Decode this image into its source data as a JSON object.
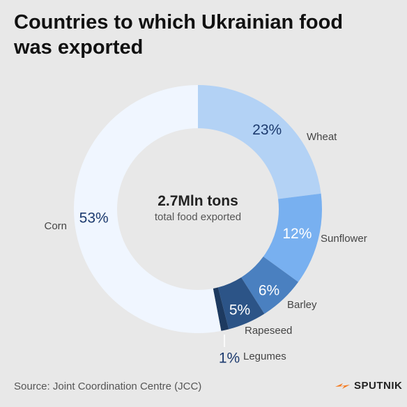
{
  "title_lines": [
    "Countries to which Ukrainian food",
    "was exported"
  ],
  "center": {
    "value": "2.7Mln tons",
    "caption": "total food exported"
  },
  "source": "Source: Joint Coordination Centre (JCC)",
  "brand": "SPUTNIK",
  "colors": {
    "background": "#e8e8e8",
    "accent": "#1c3a6e",
    "brand": "#f47a1f"
  },
  "chart_data": {
    "type": "pie",
    "title": "Countries to which Ukrainian food was exported",
    "categories": [
      "Wheat",
      "Sunflower",
      "Barley",
      "Rapeseed",
      "Legumes",
      "Corn"
    ],
    "values": [
      23,
      12,
      6,
      5,
      1,
      53
    ],
    "percent_labels": [
      "23%",
      "12%",
      "6%",
      "5%",
      "1%",
      "53%"
    ],
    "colors": [
      "#b3d2f5",
      "#78b0f0",
      "#4a80c0",
      "#2c5487",
      "#1d3a60",
      "#f0f6ff"
    ],
    "label_colors": [
      "#1c3a6e",
      "#ffffff",
      "#ffffff",
      "#ffffff",
      "#1c3a6e",
      "#1c3a6e"
    ],
    "hole": "donut"
  }
}
